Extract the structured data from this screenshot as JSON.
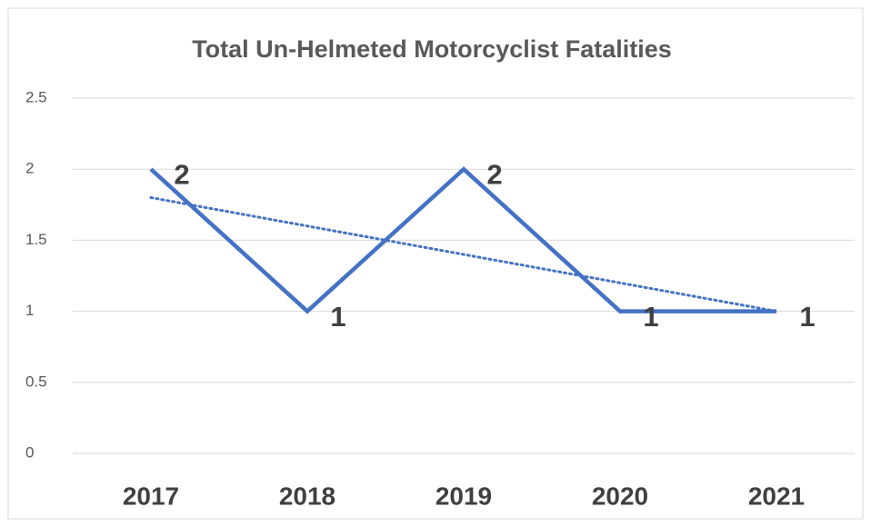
{
  "chart_data": {
    "type": "line",
    "title": "Total Un-Helmeted Motorcyclist Fatalities",
    "categories": [
      "2017",
      "2018",
      "2019",
      "2020",
      "2021"
    ],
    "series": [
      {
        "color": "#4472c4",
        "values": [
          2,
          1,
          2,
          1,
          1
        ]
      }
    ],
    "trendline": {
      "color": "#4472c4",
      "values": [
        1.8,
        1.6,
        1.4,
        1.2,
        1.0
      ]
    },
    "ylim": [
      0,
      2.5
    ],
    "yticks": [
      0,
      0.5,
      1,
      1.5,
      2,
      2.5
    ],
    "grid": true
  }
}
